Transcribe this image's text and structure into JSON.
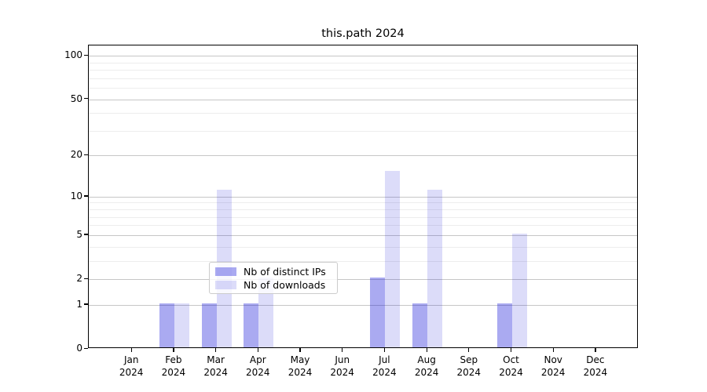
{
  "title": "this.path 2024",
  "chart_data": {
    "type": "bar",
    "title": "this.path 2024",
    "categories": [
      "Jan 2024",
      "Feb 2024",
      "Mar 2024",
      "Apr 2024",
      "May 2024",
      "Jun 2024",
      "Jul 2024",
      "Aug 2024",
      "Sep 2024",
      "Oct 2024",
      "Nov 2024",
      "Dec 2024"
    ],
    "series": [
      {
        "name": "Nb of distinct IPs",
        "color": "rgba(20,20,215,0.36)",
        "color_hex_on_white": "#a8a8f0",
        "values": [
          0,
          1,
          1,
          1,
          0,
          0,
          2,
          1,
          0,
          1,
          0,
          0
        ]
      },
      {
        "name": "Nb of downloads",
        "color": "rgba(20,20,215,0.15)",
        "color_hex_on_white": "#dcdcf8",
        "values": [
          0,
          1,
          11,
          2,
          0,
          0,
          15,
          11,
          0,
          5,
          0,
          0
        ]
      }
    ],
    "xlabel": "",
    "ylabel": "",
    "yscale": "log1p",
    "ylim": [
      0,
      118
    ],
    "y_ticks": [
      0,
      1,
      2,
      5,
      10,
      20,
      50,
      100
    ],
    "y_minor_gridlines": [
      3,
      4,
      6,
      7,
      8,
      9,
      30,
      40,
      60,
      70,
      80,
      90
    ],
    "grid": true,
    "legend_position": "lower center",
    "legend_labels": [
      "Nb of distinct IPs",
      "Nb of downloads"
    ]
  }
}
